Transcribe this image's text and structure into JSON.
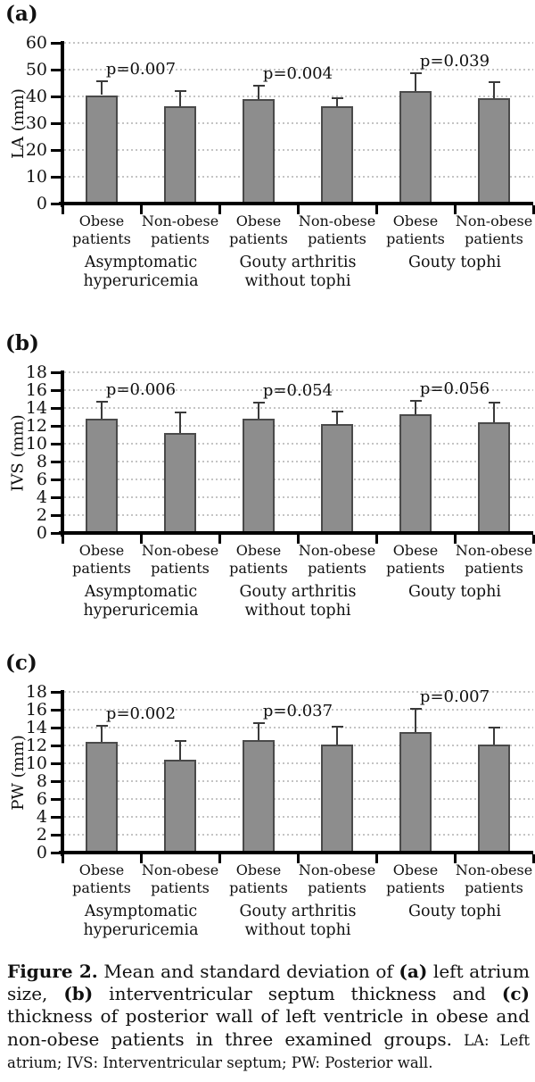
{
  "colors": {
    "bar_fill": "#8d8d8d",
    "bar_border": "#4a4a4a",
    "error_bar": "#3a3a3a",
    "gridline": "#c4c4c4",
    "axis": "#000000"
  },
  "chart_data": [
    {
      "type": "bar",
      "panel": "(a)",
      "ylabel": "LA (mm)",
      "ylim": [
        0,
        60
      ],
      "ystep": 10,
      "grid": true,
      "groups": [
        {
          "label": "Asymptomatic\nhyperuricemia",
          "p_label": "p=0.007",
          "bars": [
            {
              "label": "Obese\npatients",
              "mean": 40.5,
              "sd": 5.2
            },
            {
              "label": "Non-obese\npatients",
              "mean": 36.2,
              "sd": 5.7
            }
          ]
        },
        {
          "label": "Gouty arthritis\nwithout tophi",
          "p_label": "p=0.004",
          "bars": [
            {
              "label": "Obese\npatients",
              "mean": 39.0,
              "sd": 5.0
            },
            {
              "label": "Non-obese\npatients",
              "mean": 36.3,
              "sd": 3.1
            }
          ]
        },
        {
          "label": "Gouty tophi",
          "p_label": "p=0.039",
          "bars": [
            {
              "label": "Obese\npatients",
              "mean": 42.0,
              "sd": 6.6
            },
            {
              "label": "Non-obese\npatients",
              "mean": 39.3,
              "sd": 5.9
            }
          ]
        }
      ]
    },
    {
      "type": "bar",
      "panel": "(b)",
      "ylabel": "IVS (mm)",
      "ylim": [
        0,
        18
      ],
      "ystep": 2,
      "grid": true,
      "groups": [
        {
          "label": "Asymptomatic\nhyperuricemia",
          "p_label": "p=0.006",
          "bars": [
            {
              "label": "Obese\npatients",
              "mean": 12.8,
              "sd": 1.9
            },
            {
              "label": "Non-obese\npatients",
              "mean": 11.2,
              "sd": 2.3
            }
          ]
        },
        {
          "label": "Gouty arthritis\nwithout tophi",
          "p_label": "p=0.054",
          "bars": [
            {
              "label": "Obese\npatients",
              "mean": 12.8,
              "sd": 1.8
            },
            {
              "label": "Non-obese\npatients",
              "mean": 12.2,
              "sd": 1.4
            }
          ]
        },
        {
          "label": "Gouty tophi",
          "p_label": "p=0.056",
          "bars": [
            {
              "label": "Obese\npatients",
              "mean": 13.3,
              "sd": 1.5
            },
            {
              "label": "Non-obese\npatients",
              "mean": 12.4,
              "sd": 2.2
            }
          ]
        }
      ]
    },
    {
      "type": "bar",
      "panel": "(c)",
      "ylabel": "PW (mm)",
      "ylim": [
        0,
        18
      ],
      "ystep": 2,
      "grid": true,
      "groups": [
        {
          "label": "Asymptomatic\nhyperuricemia",
          "p_label": "p=0.002",
          "bars": [
            {
              "label": "Obese\npatients",
              "mean": 12.4,
              "sd": 1.8
            },
            {
              "label": "Non-obese\npatients",
              "mean": 10.4,
              "sd": 2.1
            }
          ]
        },
        {
          "label": "Gouty arthritis\nwithout tophi",
          "p_label": "p=0.037",
          "bars": [
            {
              "label": "Obese\npatients",
              "mean": 12.6,
              "sd": 1.9
            },
            {
              "label": "Non-obese\npatients",
              "mean": 12.1,
              "sd": 2.0
            }
          ]
        },
        {
          "label": "Gouty tophi",
          "p_label": "p=0.007",
          "bars": [
            {
              "label": "Obese\npatients",
              "mean": 13.5,
              "sd": 2.6
            },
            {
              "label": "Non-obese\npatients",
              "mean": 12.1,
              "sd": 1.9
            }
          ]
        }
      ]
    }
  ],
  "caption": {
    "segments": [
      {
        "text": "Figure 2.",
        "bold": true,
        "small": false
      },
      {
        "text": " Mean and standard deviation of ",
        "bold": false,
        "small": false
      },
      {
        "text": "(a)",
        "bold": true,
        "small": false
      },
      {
        "text": " left atrium size, ",
        "bold": false,
        "small": false
      },
      {
        "text": "(b)",
        "bold": true,
        "small": false
      },
      {
        "text": " interventricular septum thickness and ",
        "bold": false,
        "small": false
      },
      {
        "text": "(c)",
        "bold": true,
        "small": false
      },
      {
        "text": " thickness of posterior wall of left ventricle in obese and non-obese patients in three examined groups. ",
        "bold": false,
        "small": false
      },
      {
        "text": "LA: Left atrium; IVS: Interventricular septum; PW: Posterior wall.",
        "bold": false,
        "small": true
      }
    ]
  }
}
